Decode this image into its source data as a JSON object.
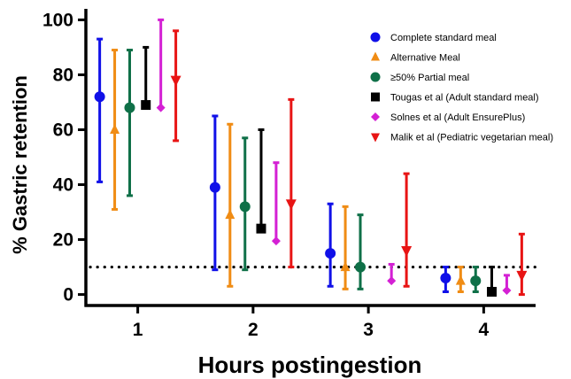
{
  "chart_data": {
    "type": "scatter",
    "xlabel": "Hours postingestion",
    "ylabel": "% Gastric retention",
    "x_ticks": [
      "1",
      "2",
      "3",
      "4"
    ],
    "y_ticks": [
      "0",
      "20",
      "40",
      "60",
      "80",
      "100"
    ],
    "ylim": [
      -4,
      104
    ],
    "xlim": [
      0.55,
      4.45
    ],
    "grid": false,
    "legend_position": "top-right",
    "reference_line": {
      "y": 10,
      "style": "dotted"
    },
    "series": [
      {
        "name": "Complete standard meal",
        "marker": "circle",
        "color": "#1010e8",
        "offset": -0.33,
        "points": [
          {
            "x": 1,
            "y": 72,
            "low": 41,
            "high": 93
          },
          {
            "x": 2,
            "y": 39,
            "low": 9,
            "high": 65
          },
          {
            "x": 3,
            "y": 15,
            "low": 3,
            "high": 33
          },
          {
            "x": 4,
            "y": 6,
            "low": 1,
            "high": 10
          }
        ]
      },
      {
        "name": "Alternative Meal",
        "marker": "triangle-up",
        "color": "#f08c14",
        "offset": -0.2,
        "points": [
          {
            "x": 1,
            "y": 60,
            "low": 31,
            "high": 89
          },
          {
            "x": 2,
            "y": 29,
            "low": 3,
            "high": 62
          },
          {
            "x": 3,
            "y": 10,
            "low": 2,
            "high": 32
          },
          {
            "x": 4,
            "y": 5,
            "low": 1,
            "high": 10
          }
        ]
      },
      {
        "name": "≥50% Partial meal",
        "marker": "circle",
        "color": "#0f7048",
        "offset": -0.07,
        "points": [
          {
            "x": 1,
            "y": 68,
            "low": 36,
            "high": 89
          },
          {
            "x": 2,
            "y": 32,
            "low": 9,
            "high": 57
          },
          {
            "x": 3,
            "y": 10,
            "low": 2,
            "high": 29
          },
          {
            "x": 4,
            "y": 5,
            "low": 1,
            "high": 10
          }
        ]
      },
      {
        "name": "Tougas et al (Adult standard meal)",
        "marker": "square",
        "color": "#000000",
        "offset": 0.07,
        "points": [
          {
            "x": 1,
            "y": 69,
            "low": 69,
            "high": 90
          },
          {
            "x": 2,
            "y": 24,
            "low": 24,
            "high": 60
          },
          {
            "x": 4,
            "y": 1,
            "low": 1,
            "high": 10
          }
        ]
      },
      {
        "name": "Solnes et al (Adult EnsurePlus)",
        "marker": "diamond",
        "color": "#d420d4",
        "offset": 0.2,
        "points": [
          {
            "x": 1,
            "y": 68,
            "low": 68,
            "high": 100
          },
          {
            "x": 2,
            "y": 19.5,
            "low": 19.5,
            "high": 48
          },
          {
            "x": 3,
            "y": 5,
            "low": 5,
            "high": 11
          },
          {
            "x": 4,
            "y": 1.5,
            "low": 1.5,
            "high": 7
          }
        ]
      },
      {
        "name": "Malik et al (Pediatric vegetarian meal)",
        "marker": "triangle-down",
        "color": "#e81414",
        "offset": 0.33,
        "points": [
          {
            "x": 1,
            "y": 78,
            "low": 56,
            "high": 96
          },
          {
            "x": 2,
            "y": 33,
            "low": 10,
            "high": 71
          },
          {
            "x": 3,
            "y": 16,
            "low": 3,
            "high": 44
          },
          {
            "x": 4,
            "y": 7,
            "low": 0,
            "high": 22
          }
        ]
      }
    ]
  }
}
